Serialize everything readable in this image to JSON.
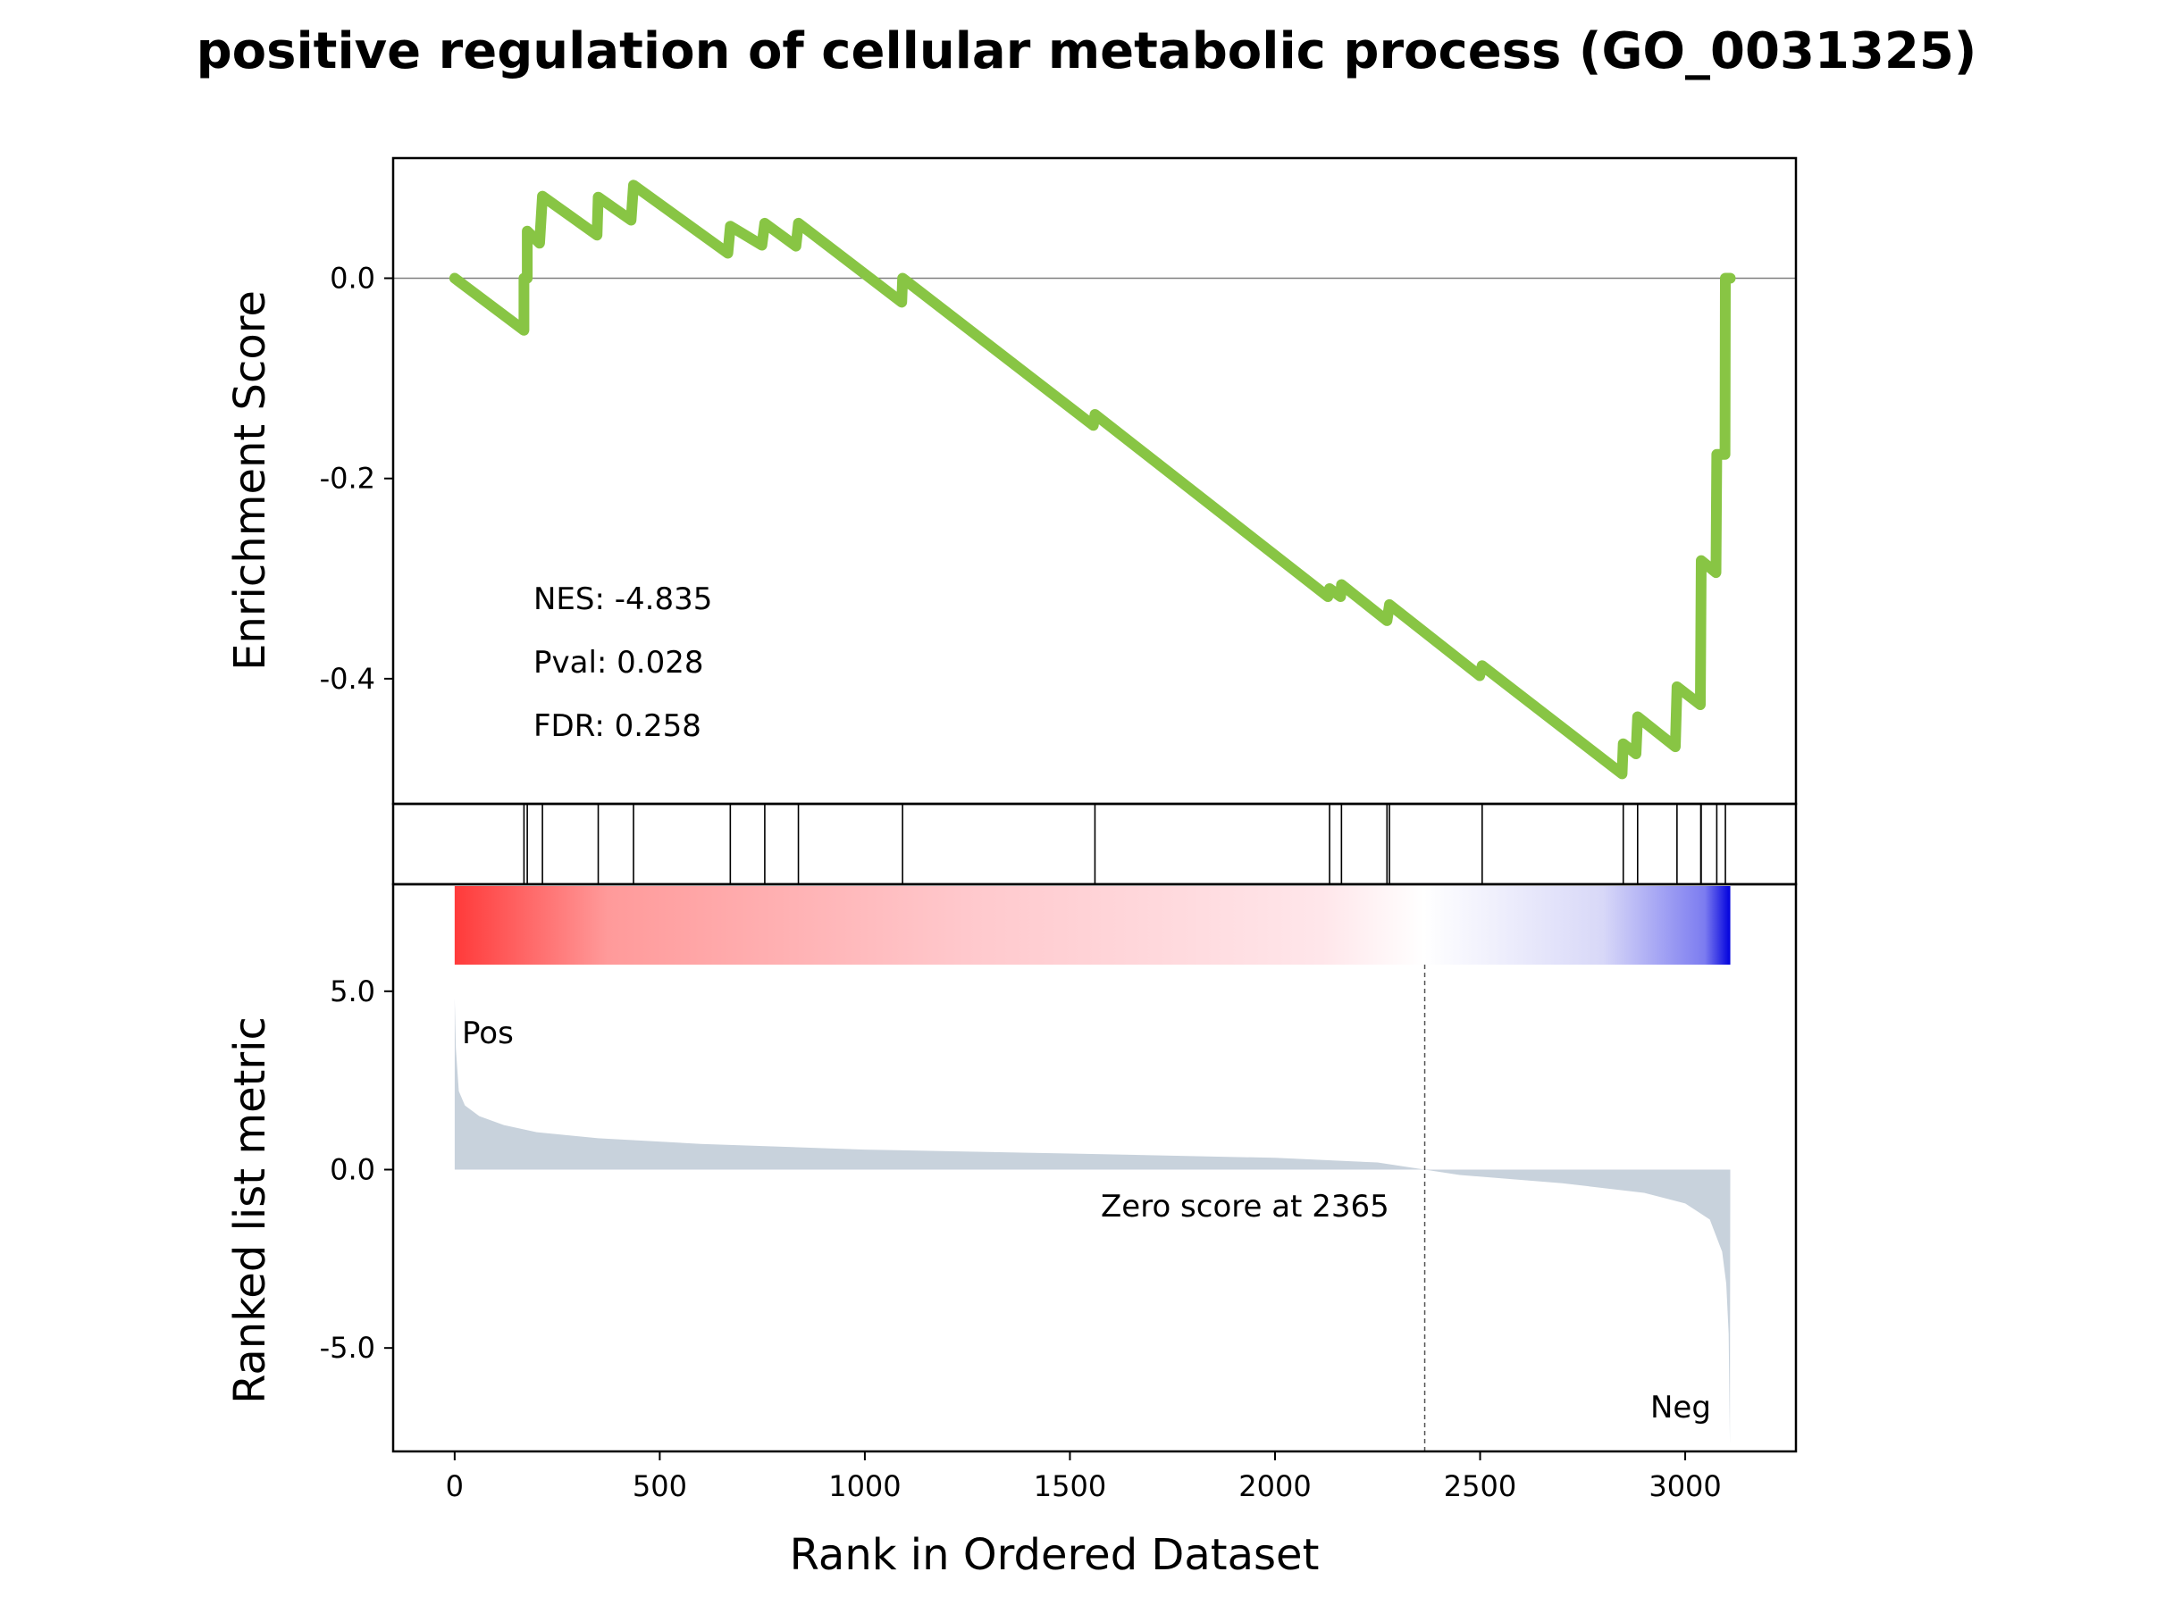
{
  "chart_data": {
    "type": "line",
    "title": "positive regulation of cellular metabolic process (GO_0031325)",
    "xlabel": "Rank in Ordered Dataset",
    "xlim": [
      -150,
      3270
    ],
    "xticks": [
      0,
      500,
      1000,
      1500,
      2000,
      2500,
      3000
    ],
    "xtick_labels": [
      "0",
      "500",
      "1000",
      "1500",
      "2000",
      "2500",
      "3000"
    ],
    "enrichment": {
      "ylabel": "Enrichment Score",
      "ylim": [
        -0.525,
        0.12
      ],
      "yticks": [
        0.0,
        -0.2,
        -0.4
      ],
      "ytick_labels": [
        "0.0",
        "-0.2",
        "-0.4"
      ],
      "line_color": "#88c544",
      "zero_line_color": "#808080",
      "points": [
        [
          0,
          0.0
        ],
        [
          169,
          -0.052
        ],
        [
          169,
          0.0
        ],
        [
          177,
          0.0
        ],
        [
          177,
          0.047
        ],
        [
          207,
          0.035
        ],
        [
          214,
          0.082
        ],
        [
          347,
          0.043
        ],
        [
          350,
          0.081
        ],
        [
          430,
          0.058
        ],
        [
          436,
          0.093
        ],
        [
          666,
          0.025
        ],
        [
          672,
          0.052
        ],
        [
          749,
          0.033
        ],
        [
          756,
          0.055
        ],
        [
          832,
          0.032
        ],
        [
          838,
          0.055
        ],
        [
          1090,
          -0.024
        ],
        [
          1092,
          0.0
        ],
        [
          1557,
          -0.147
        ],
        [
          1561,
          -0.136
        ],
        [
          2129,
          -0.318
        ],
        [
          2133,
          -0.31
        ],
        [
          2160,
          -0.318
        ],
        [
          2162,
          -0.306
        ],
        [
          2273,
          -0.342
        ],
        [
          2279,
          -0.326
        ],
        [
          2499,
          -0.397
        ],
        [
          2505,
          -0.387
        ],
        [
          2846,
          -0.495
        ],
        [
          2849,
          -0.465
        ],
        [
          2880,
          -0.475
        ],
        [
          2884,
          -0.438
        ],
        [
          2976,
          -0.468
        ],
        [
          2980,
          -0.408
        ],
        [
          3037,
          -0.426
        ],
        [
          3038,
          -0.355
        ],
        [
          3039,
          -0.282
        ],
        [
          3075,
          -0.294
        ],
        [
          3077,
          -0.176
        ],
        [
          3097,
          -0.176
        ],
        [
          3098,
          0.0
        ],
        [
          3110,
          0.0
        ]
      ],
      "stats": [
        {
          "label": "NES: -4.835"
        },
        {
          "label": "Pval: 0.028"
        },
        {
          "label": "FDR: 0.258"
        }
      ]
    },
    "hits": {
      "ranks": [
        169,
        177,
        214,
        350,
        436,
        672,
        756,
        838,
        1092,
        1561,
        2133,
        2162,
        2273,
        2279,
        2505,
        2849,
        2884,
        2980,
        3038,
        3039,
        3077,
        3098
      ],
      "color": "#000000"
    },
    "ranked": {
      "ylabel": "Ranked list metric",
      "ylim": [
        -7.9,
        8.0
      ],
      "yticks": [
        5.0,
        0.0,
        -5.0
      ],
      "ytick_labels": [
        "5.0",
        "0.0",
        "-5.0"
      ],
      "fill_color": "#c8d2dc",
      "n": 3110,
      "zero_cross": 2365,
      "zero_label": "Zero score at 2365",
      "pos_label": "Pos",
      "neg_label": "Neg",
      "pos_color": "#ff0000",
      "neg_color": "#0000ff",
      "curve": [
        [
          0,
          4.8
        ],
        [
          3,
          3.4
        ],
        [
          10,
          2.2
        ],
        [
          25,
          1.8
        ],
        [
          60,
          1.5
        ],
        [
          120,
          1.25
        ],
        [
          200,
          1.05
        ],
        [
          350,
          0.88
        ],
        [
          600,
          0.72
        ],
        [
          1000,
          0.56
        ],
        [
          1500,
          0.45
        ],
        [
          2000,
          0.33
        ],
        [
          2250,
          0.2
        ],
        [
          2365,
          0.0
        ],
        [
          2450,
          -0.15
        ],
        [
          2700,
          -0.38
        ],
        [
          2900,
          -0.65
        ],
        [
          3000,
          -0.95
        ],
        [
          3060,
          -1.4
        ],
        [
          3090,
          -2.3
        ],
        [
          3100,
          -3.2
        ],
        [
          3106,
          -4.6
        ],
        [
          3109,
          -7.7
        ]
      ]
    }
  }
}
